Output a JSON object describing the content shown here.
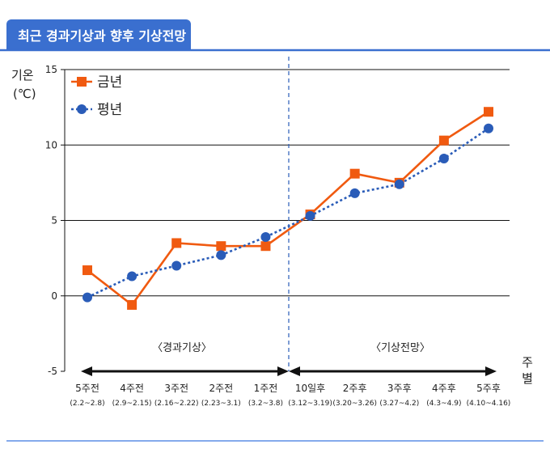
{
  "header": {
    "title": "최근 경과기상과 향후 기상전망"
  },
  "chart_data": {
    "type": "line",
    "ylabel": "기온\n(℃)",
    "xlabel": "주별",
    "ylim": [
      -5,
      15
    ],
    "yticks": [
      -5,
      0,
      5,
      10,
      15
    ],
    "grid": true,
    "legend_position": "top-left",
    "categories": [
      {
        "top": "5주전",
        "bottom": "(2.2~2.8)"
      },
      {
        "top": "4주전",
        "bottom": "(2.9~2.15)"
      },
      {
        "top": "3주전",
        "bottom": "(2.16~2.22)"
      },
      {
        "top": "2주전",
        "bottom": "(2.23~3.1)"
      },
      {
        "top": "1주전",
        "bottom": "(3.2~3.8)"
      },
      {
        "top": "10일후",
        "bottom": "(3.12~3.19)"
      },
      {
        "top": "2주후",
        "bottom": "(3.20~3.26)"
      },
      {
        "top": "3주후",
        "bottom": "(3.27~4.2)"
      },
      {
        "top": "4주후",
        "bottom": "(4.3~4.9)"
      },
      {
        "top": "5주후",
        "bottom": "(4.10~4.16)"
      }
    ],
    "series": [
      {
        "name": "금년",
        "color": "#f05a10",
        "marker": "square",
        "style": "solid",
        "values": [
          1.7,
          -0.6,
          3.5,
          3.3,
          3.3,
          5.4,
          8.1,
          7.5,
          10.3,
          12.2
        ]
      },
      {
        "name": "평년",
        "color": "#2a5cb8",
        "marker": "circle",
        "style": "dotted",
        "values": [
          -0.1,
          1.3,
          2.0,
          2.7,
          3.9,
          5.3,
          6.8,
          7.4,
          9.1,
          11.1
        ]
      }
    ],
    "annotations": {
      "past_label": "〈경과기상〉",
      "future_label": "〈기상전망〉"
    },
    "colors": {
      "header_bg": "#3a6fcf",
      "divider": "#2a5cb8",
      "bottom_rule": "#5b8ee6"
    }
  }
}
